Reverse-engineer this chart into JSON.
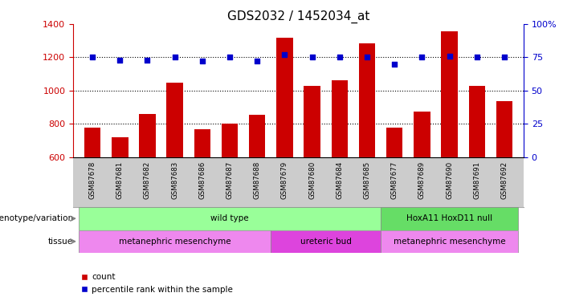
{
  "title": "GDS2032 / 1452034_at",
  "samples": [
    "GSM87678",
    "GSM87681",
    "GSM87682",
    "GSM87683",
    "GSM87686",
    "GSM87687",
    "GSM87688",
    "GSM87679",
    "GSM87680",
    "GSM87684",
    "GSM87685",
    "GSM87677",
    "GSM87689",
    "GSM87690",
    "GSM87691",
    "GSM87692"
  ],
  "counts": [
    780,
    720,
    860,
    1048,
    770,
    800,
    855,
    1320,
    1030,
    1060,
    1285,
    780,
    875,
    1355,
    1030,
    935
  ],
  "percentiles": [
    75,
    73,
    73,
    75,
    72,
    75,
    72,
    77,
    75,
    75,
    75,
    70,
    75,
    76,
    75,
    75
  ],
  "ylim_left": [
    600,
    1400
  ],
  "ylim_right": [
    0,
    100
  ],
  "yticks_left": [
    600,
    800,
    1000,
    1200,
    1400
  ],
  "yticks_right": [
    0,
    25,
    50,
    75,
    100
  ],
  "bar_color": "#cc0000",
  "dot_color": "#0000cc",
  "background_color": "#ffffff",
  "grid_color": "#000000",
  "label_row_color": "#cccccc",
  "genotype_groups": [
    {
      "label": "wild type",
      "start": 0,
      "end": 11,
      "color": "#99ff99"
    },
    {
      "label": "HoxA11 HoxD11 null",
      "start": 11,
      "end": 16,
      "color": "#66dd66"
    }
  ],
  "tissue_groups": [
    {
      "label": "metanephric mesenchyme",
      "start": 0,
      "end": 7,
      "color": "#ee88ee"
    },
    {
      "label": "ureteric bud",
      "start": 7,
      "end": 11,
      "color": "#dd44dd"
    },
    {
      "label": "metanephric mesenchyme",
      "start": 11,
      "end": 16,
      "color": "#ee88ee"
    }
  ],
  "legend_items": [
    {
      "label": "count",
      "color": "#cc0000"
    },
    {
      "label": "percentile rank within the sample",
      "color": "#0000cc"
    }
  ],
  "left_label_color": "#cc0000",
  "right_label_color": "#0000cc",
  "genotype_label": "genotype/variation",
  "tissue_label": "tissue"
}
